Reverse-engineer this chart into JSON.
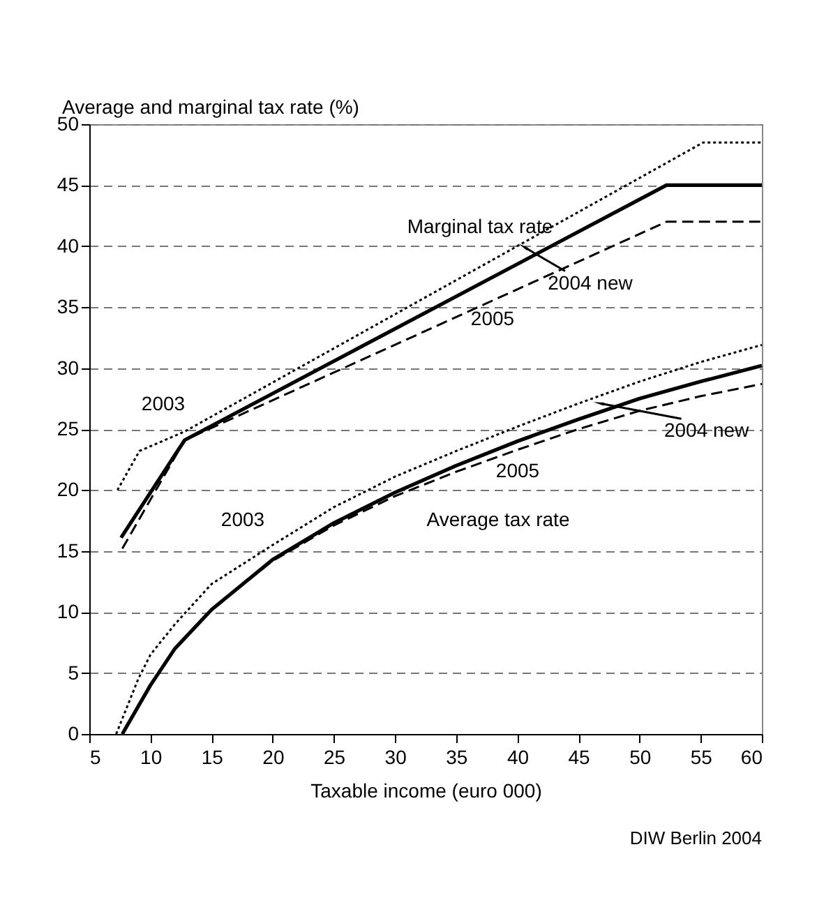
{
  "chart_data": {
    "type": "line",
    "xlabel": "Taxable income (euro 000)",
    "ylabel": "Average and marginal tax rate (%)",
    "xlim": [
      5,
      60
    ],
    "xticks": [
      5,
      10,
      15,
      20,
      25,
      30,
      35,
      40,
      45,
      50,
      55,
      60
    ],
    "ylim": [
      0,
      50
    ],
    "yticks": [
      0,
      5,
      10,
      15,
      20,
      25,
      30,
      35,
      40,
      45,
      50
    ],
    "grid": "y",
    "marker": "none",
    "series": [
      {
        "color": "#000000",
        "line_style": "dotted",
        "x": [
          7.3,
          9.1,
          12.8,
          55.2,
          60
        ],
        "values": [
          20,
          23.2,
          24.8,
          48.5,
          48.5
        ]
      },
      {
        "color": "#000000",
        "line_style": "solid",
        "x": [
          7.6,
          12.8,
          52.2,
          60
        ],
        "values": [
          16.1,
          24.1,
          45,
          45
        ]
      },
      {
        "color": "#000000",
        "line_style": "dashed",
        "x": [
          7.7,
          12.8,
          52.2,
          60
        ],
        "values": [
          15.2,
          24.1,
          42,
          42
        ]
      },
      {
        "color": "#000000",
        "line_style": "dotted",
        "x": [
          7.2,
          8,
          9,
          10,
          12,
          15,
          20,
          25,
          30,
          35,
          40,
          45,
          50,
          55,
          60
        ],
        "values": [
          0,
          2,
          4.5,
          6.5,
          9,
          12.3,
          15.5,
          18.6,
          21.1,
          23.2,
          25.2,
          27.1,
          28.9,
          30.5,
          31.9
        ]
      },
      {
        "color": "#000000",
        "line_style": "solid",
        "x": [
          7.7,
          10,
          12,
          15,
          20,
          25,
          30,
          35,
          40,
          45,
          50,
          55,
          60
        ],
        "values": [
          0,
          4,
          7,
          10.2,
          14.3,
          17.3,
          19.8,
          22,
          24,
          25.8,
          27.5,
          28.9,
          30.2
        ]
      },
      {
        "color": "#000000",
        "line_style": "dashed",
        "x": [
          7.7,
          10,
          12,
          15,
          20,
          25,
          30,
          35,
          40,
          45,
          50,
          55,
          60
        ],
        "values": [
          0,
          4,
          7,
          10.2,
          14.2,
          17.1,
          19.5,
          21.5,
          23.3,
          25,
          26.5,
          27.7,
          28.7
        ]
      }
    ],
    "annotations": [
      "Marginal tax rate",
      {
        "text": "2004 new",
        "x": 40.6,
        "y": 39.9
      },
      "2005",
      "2003",
      "2003",
      "Average tax rate",
      "2005",
      {
        "text": "2004 new",
        "x": 46.8,
        "y": 27.1
      },
      "DIW Berlin 2004"
    ]
  }
}
